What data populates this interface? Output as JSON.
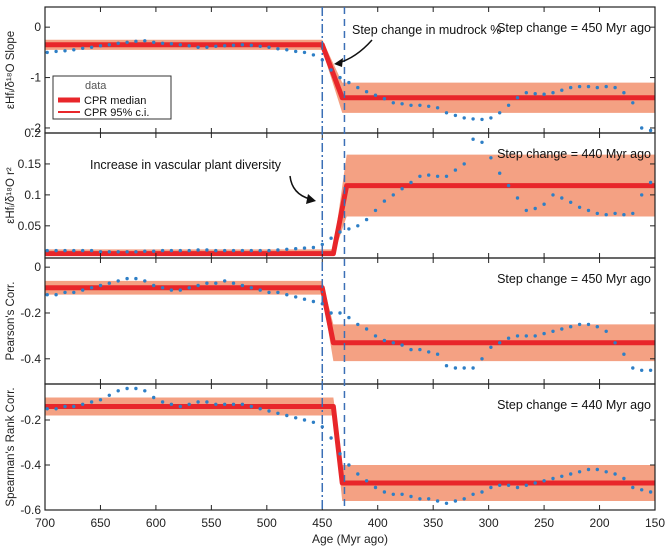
{
  "chart_data": {
    "type": "line",
    "xlabel": "Age (Myr ago)",
    "x_ticks": [
      700,
      650,
      600,
      550,
      500,
      450,
      400,
      350,
      300,
      250,
      200,
      150
    ],
    "xlim": [
      700,
      150
    ],
    "vlines": [
      {
        "x": 450,
        "style": "dashdot"
      },
      {
        "x": 430,
        "style": "dashed"
      }
    ],
    "legend": {
      "title": "data",
      "entries": [
        "CPR median",
        "CPR 95% c.i."
      ],
      "placement": "top-left of first panel"
    },
    "panels": [
      {
        "ylabel": "εHfᵢ/δ¹⁸O Slope",
        "ylim": [
          -2.1,
          0.4
        ],
        "y_ticks": [
          0,
          -1,
          -2
        ],
        "annotation": "Step change = 450 Myr ago",
        "callout": "Step change in mudrock %",
        "cpr": {
          "before": -0.35,
          "after": -1.4,
          "step_start": 450,
          "step_end": 432
        },
        "ci": {
          "before": [
            -0.45,
            -0.25
          ],
          "after": [
            -1.7,
            -1.1
          ]
        },
        "series": {
          "x": [
            698,
            690,
            682,
            674,
            666,
            658,
            650,
            642,
            634,
            626,
            618,
            610,
            602,
            594,
            586,
            578,
            570,
            562,
            554,
            546,
            538,
            530,
            522,
            514,
            506,
            498,
            490,
            482,
            474,
            466,
            458,
            450,
            442,
            434,
            426,
            418,
            410,
            402,
            394,
            386,
            378,
            370,
            362,
            354,
            346,
            338,
            330,
            322,
            314,
            306,
            298,
            290,
            282,
            274,
            266,
            258,
            250,
            242,
            234,
            226,
            218,
            210,
            202,
            194,
            186,
            178,
            170,
            162,
            154
          ],
          "y": [
            -0.5,
            -0.48,
            -0.47,
            -0.45,
            -0.42,
            -0.4,
            -0.37,
            -0.35,
            -0.32,
            -0.3,
            -0.28,
            -0.27,
            -0.3,
            -0.32,
            -0.33,
            -0.35,
            -0.37,
            -0.4,
            -0.4,
            -0.38,
            -0.37,
            -0.36,
            -0.35,
            -0.36,
            -0.38,
            -0.4,
            -0.43,
            -0.45,
            -0.48,
            -0.5,
            -0.55,
            -0.65,
            -0.85,
            -1.0,
            -1.1,
            -1.2,
            -1.28,
            -1.35,
            -1.42,
            -1.5,
            -1.52,
            -1.55,
            -1.55,
            -1.57,
            -1.6,
            -1.7,
            -1.75,
            -1.8,
            -1.82,
            -1.83,
            -1.8,
            -1.7,
            -1.55,
            -1.4,
            -1.3,
            -1.32,
            -1.33,
            -1.3,
            -1.25,
            -1.2,
            -1.18,
            -1.18,
            -1.2,
            -1.18,
            -1.2,
            -1.3,
            -1.5,
            -2.0,
            -2.05
          ]
        }
      },
      {
        "ylabel": "εHfᵢ/δ¹⁸O r²",
        "ylim": [
          -0.002,
          0.2
        ],
        "y_ticks": [
          0.2,
          0.15,
          0.1,
          0.05
        ],
        "annotation": "Step change = 440 Myr ago",
        "callout": "Increase in vascular plant diversity",
        "cpr": {
          "before": 0.005,
          "after": 0.115,
          "step_start": 440,
          "step_end": 428
        },
        "ci": {
          "before": [
            0.002,
            0.012
          ],
          "after": [
            0.065,
            0.165
          ]
        },
        "series": {
          "x": [
            698,
            690,
            682,
            674,
            666,
            658,
            650,
            642,
            634,
            626,
            618,
            610,
            602,
            594,
            586,
            578,
            570,
            562,
            554,
            546,
            538,
            530,
            522,
            514,
            506,
            498,
            490,
            482,
            474,
            466,
            458,
            450,
            442,
            434,
            426,
            418,
            410,
            402,
            394,
            386,
            378,
            370,
            362,
            354,
            346,
            338,
            330,
            322,
            314,
            306,
            298,
            290,
            282,
            274,
            266,
            258,
            250,
            242,
            234,
            226,
            218,
            210,
            202,
            194,
            186,
            178,
            170,
            162,
            154
          ],
          "y": [
            0.01,
            0.01,
            0.01,
            0.01,
            0.01,
            0.01,
            0.008,
            0.008,
            0.008,
            0.008,
            0.008,
            0.009,
            0.009,
            0.01,
            0.01,
            0.01,
            0.01,
            0.011,
            0.011,
            0.01,
            0.01,
            0.01,
            0.01,
            0.01,
            0.01,
            0.01,
            0.011,
            0.012,
            0.013,
            0.014,
            0.015,
            0.02,
            0.03,
            0.04,
            0.045,
            0.05,
            0.06,
            0.075,
            0.09,
            0.1,
            0.11,
            0.12,
            0.13,
            0.132,
            0.13,
            0.13,
            0.14,
            0.15,
            0.19,
            0.185,
            0.16,
            0.135,
            0.115,
            0.095,
            0.075,
            0.078,
            0.085,
            0.1,
            0.095,
            0.088,
            0.08,
            0.075,
            0.07,
            0.068,
            0.07,
            0.068,
            0.07,
            0.1,
            0.12
          ]
        }
      },
      {
        "ylabel": "Pearson's Corr.",
        "ylim": [
          -0.51,
          0.04
        ],
        "y_ticks": [
          0,
          -0.2,
          -0.4
        ],
        "annotation": "Step change = 450 Myr ago",
        "cpr": {
          "before": -0.09,
          "after": -0.33,
          "step_start": 450,
          "step_end": 440
        },
        "ci": {
          "before": [
            -0.12,
            -0.06
          ],
          "after": [
            -0.41,
            -0.25
          ]
        },
        "series": {
          "x": [
            698,
            690,
            682,
            674,
            666,
            658,
            650,
            642,
            634,
            626,
            618,
            610,
            602,
            594,
            586,
            578,
            570,
            562,
            554,
            546,
            538,
            530,
            522,
            514,
            506,
            498,
            490,
            482,
            474,
            466,
            458,
            450,
            442,
            434,
            426,
            418,
            410,
            402,
            394,
            386,
            378,
            370,
            362,
            354,
            346,
            338,
            330,
            322,
            314,
            306,
            298,
            290,
            282,
            274,
            266,
            258,
            250,
            242,
            234,
            226,
            218,
            210,
            202,
            194,
            186,
            178,
            170,
            162,
            154
          ],
          "y": [
            -0.12,
            -0.12,
            -0.11,
            -0.11,
            -0.1,
            -0.09,
            -0.08,
            -0.07,
            -0.06,
            -0.05,
            -0.05,
            -0.06,
            -0.08,
            -0.09,
            -0.1,
            -0.1,
            -0.09,
            -0.08,
            -0.07,
            -0.07,
            -0.06,
            -0.07,
            -0.08,
            -0.09,
            -0.1,
            -0.11,
            -0.11,
            -0.12,
            -0.13,
            -0.14,
            -0.15,
            -0.16,
            -0.2,
            -0.2,
            -0.22,
            -0.25,
            -0.27,
            -0.3,
            -0.32,
            -0.33,
            -0.34,
            -0.36,
            -0.36,
            -0.37,
            -0.38,
            -0.43,
            -0.44,
            -0.44,
            -0.44,
            -0.4,
            -0.35,
            -0.33,
            -0.31,
            -0.3,
            -0.3,
            -0.3,
            -0.29,
            -0.28,
            -0.27,
            -0.26,
            -0.25,
            -0.25,
            -0.26,
            -0.28,
            -0.33,
            -0.38,
            -0.44,
            -0.45,
            -0.45
          ]
        }
      },
      {
        "ylabel": "Spearman's Rank Corr.",
        "ylim": [
          -0.6,
          -0.04
        ],
        "y_ticks": [
          -0.2,
          -0.4,
          -0.6
        ],
        "annotation": "Step change = 440 Myr ago",
        "cpr": {
          "before": -0.14,
          "after": -0.48,
          "step_start": 440,
          "step_end": 432
        },
        "ci": {
          "before": [
            -0.18,
            -0.1
          ],
          "after": [
            -0.56,
            -0.4
          ]
        },
        "series": {
          "x": [
            698,
            690,
            682,
            674,
            666,
            658,
            650,
            642,
            634,
            626,
            618,
            610,
            602,
            594,
            586,
            578,
            570,
            562,
            554,
            546,
            538,
            530,
            522,
            514,
            506,
            498,
            490,
            482,
            474,
            466,
            458,
            450,
            442,
            434,
            426,
            418,
            410,
            402,
            394,
            386,
            378,
            370,
            362,
            354,
            346,
            338,
            330,
            322,
            314,
            306,
            298,
            290,
            282,
            274,
            266,
            258,
            250,
            242,
            234,
            226,
            218,
            210,
            202,
            194,
            186,
            178,
            170,
            162,
            154
          ],
          "y": [
            -0.15,
            -0.15,
            -0.14,
            -0.14,
            -0.13,
            -0.12,
            -0.11,
            -0.09,
            -0.07,
            -0.06,
            -0.06,
            -0.07,
            -0.1,
            -0.12,
            -0.13,
            -0.14,
            -0.13,
            -0.12,
            -0.12,
            -0.13,
            -0.13,
            -0.13,
            -0.13,
            -0.14,
            -0.15,
            -0.16,
            -0.17,
            -0.18,
            -0.19,
            -0.2,
            -0.21,
            -0.23,
            -0.28,
            -0.35,
            -0.4,
            -0.44,
            -0.47,
            -0.5,
            -0.52,
            -0.53,
            -0.53,
            -0.54,
            -0.55,
            -0.55,
            -0.56,
            -0.57,
            -0.56,
            -0.55,
            -0.53,
            -0.52,
            -0.5,
            -0.49,
            -0.49,
            -0.5,
            -0.49,
            -0.48,
            -0.47,
            -0.46,
            -0.45,
            -0.44,
            -0.43,
            -0.42,
            -0.42,
            -0.43,
            -0.44,
            -0.46,
            -0.5,
            -0.51,
            -0.52
          ]
        }
      }
    ]
  },
  "colors": {
    "median": "#e8262a",
    "ci_fill": "#f4a183",
    "dots": "#2e7fc6",
    "vline": "#3b6fb6",
    "frame": "#222222"
  }
}
